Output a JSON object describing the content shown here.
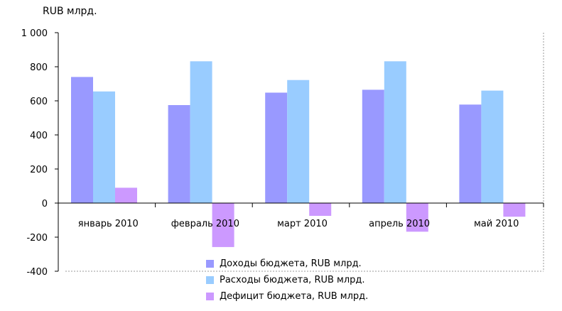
{
  "chart_data": {
    "type": "bar",
    "unit_label": "RUB млрд.",
    "categories": [
      "январь 2010",
      "февраль 2010",
      "март 2010",
      "апрель 2010",
      "май 2010"
    ],
    "series": [
      {
        "name": "Доходы бюджета, RUB млрд.",
        "color": "#9999ff",
        "values": [
          740,
          575,
          648,
          665,
          578
        ]
      },
      {
        "name": "Расходы бюджета, RUB млрд.",
        "color": "#99ccff",
        "values": [
          655,
          832,
          722,
          832,
          660
        ]
      },
      {
        "name": "Дефицит бюджета, RUB млрд.",
        "color": "#cc99ff",
        "values": [
          90,
          -258,
          -75,
          -168,
          -80
        ]
      }
    ],
    "ylim": [
      -400,
      1000
    ],
    "yticks": [
      -400,
      -200,
      0,
      200,
      400,
      600,
      800,
      1000
    ],
    "ytick_labels": [
      "-400",
      "-200",
      "0",
      "200",
      "400",
      "600",
      "800",
      "1 000"
    ],
    "legend_position": "bottom-center",
    "grid": false
  }
}
